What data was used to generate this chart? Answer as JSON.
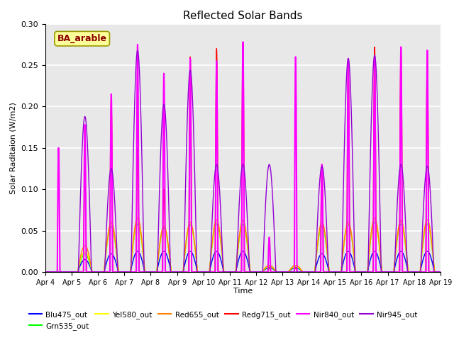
{
  "title": "Reflected Solar Bands",
  "xlabel": "Time",
  "ylabel": "Solar Raditaion (W/m2)",
  "annotation_text": "BA_arable",
  "annotation_color": "#8B0000",
  "annotation_bg": "#FFFF99",
  "annotation_edge": "#999900",
  "ylim": [
    0.0,
    0.3
  ],
  "yticks": [
    0.0,
    0.05,
    0.1,
    0.15,
    0.2,
    0.25,
    0.3
  ],
  "series": {
    "Blu475_out": {
      "color": "#0000FF",
      "lw": 1.0
    },
    "Grn535_out": {
      "color": "#00FF00",
      "lw": 1.0
    },
    "Yel580_out": {
      "color": "#FFFF00",
      "lw": 1.0
    },
    "Red655_out": {
      "color": "#FF8000",
      "lw": 1.0
    },
    "Redg715_out": {
      "color": "#FF0000",
      "lw": 1.0
    },
    "Nir840_out": {
      "color": "#FF00FF",
      "lw": 1.5
    },
    "Nir945_out": {
      "color": "#9400D3",
      "lw": 1.0
    }
  },
  "bg_color": "#E8E8E8",
  "grid_color": "#FFFFFF",
  "num_days": 15,
  "points_per_day": 288,
  "day_labels": [
    "Apr 4",
    "Apr 5",
    "Apr 6",
    "Apr 7",
    "Apr 8",
    "Apr 9",
    "Apr 10",
    "Apr 11",
    "Apr 12",
    "Apr 13",
    "Apr 14",
    "Apr 15",
    "Apr 16",
    "Apr 17",
    "Apr 18",
    "Apr 19"
  ],
  "peaks": {
    "Blu475": [
      0.0,
      0.015,
      0.022,
      0.025,
      0.025,
      0.025,
      0.025,
      0.025,
      0.005,
      0.005,
      0.022,
      0.025,
      0.025,
      0.025,
      0.025
    ],
    "Grn535": [
      0.0,
      0.022,
      0.055,
      0.058,
      0.053,
      0.057,
      0.058,
      0.057,
      0.006,
      0.006,
      0.055,
      0.057,
      0.06,
      0.058,
      0.058
    ],
    "Yel580": [
      0.0,
      0.025,
      0.057,
      0.06,
      0.055,
      0.058,
      0.06,
      0.06,
      0.007,
      0.007,
      0.058,
      0.058,
      0.062,
      0.06,
      0.06
    ],
    "Red655": [
      0.0,
      0.032,
      0.06,
      0.065,
      0.055,
      0.06,
      0.063,
      0.062,
      0.008,
      0.008,
      0.06,
      0.06,
      0.065,
      0.062,
      0.063
    ],
    "Redg715": [
      0.0,
      0.12,
      0.21,
      0.148,
      0.1,
      0.26,
      0.27,
      0.278,
      0.005,
      0.005,
      0.13,
      0.255,
      0.272,
      0.272,
      0.265
    ],
    "Nir840": [
      0.15,
      0.178,
      0.215,
      0.275,
      0.24,
      0.258,
      0.255,
      0.278,
      0.042,
      0.26,
      0.13,
      0.258,
      0.26,
      0.272,
      0.268
    ],
    "Nir945": [
      0.0,
      0.188,
      0.125,
      0.268,
      0.203,
      0.244,
      0.13,
      0.13,
      0.13,
      0.0,
      0.128,
      0.258,
      0.262,
      0.13,
      0.128
    ]
  },
  "widths": {
    "Blu475": 0.55,
    "Grn535": 0.55,
    "Yel580": 0.55,
    "Red655": 0.55,
    "Redg715": 0.12,
    "Nir840": 0.1,
    "Nir945": 0.5
  }
}
